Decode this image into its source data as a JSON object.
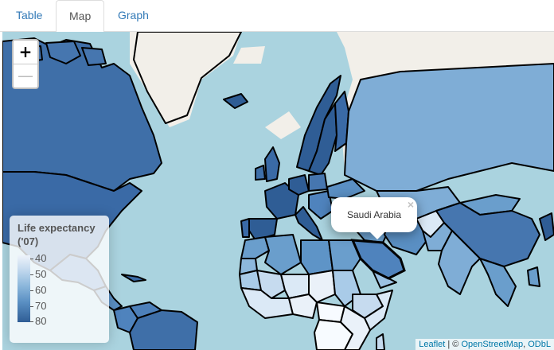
{
  "tabs": [
    {
      "label": "Table"
    },
    {
      "label": "Map",
      "active": true
    },
    {
      "label": "Graph"
    }
  ],
  "map": {
    "zoom_in": "+",
    "zoom_out": "—",
    "popup": {
      "text": "Saudi Arabia",
      "close": "×"
    },
    "legend": {
      "title": "Life expectancy ('07)",
      "labels": [
        "40",
        "50",
        "60",
        "70",
        "80"
      ]
    },
    "attribution": {
      "leaflet": "Leaflet",
      "sep": " | © ",
      "osm": "OpenStreetMap",
      "comma": ", ",
      "odbl": "ODbL"
    }
  }
}
